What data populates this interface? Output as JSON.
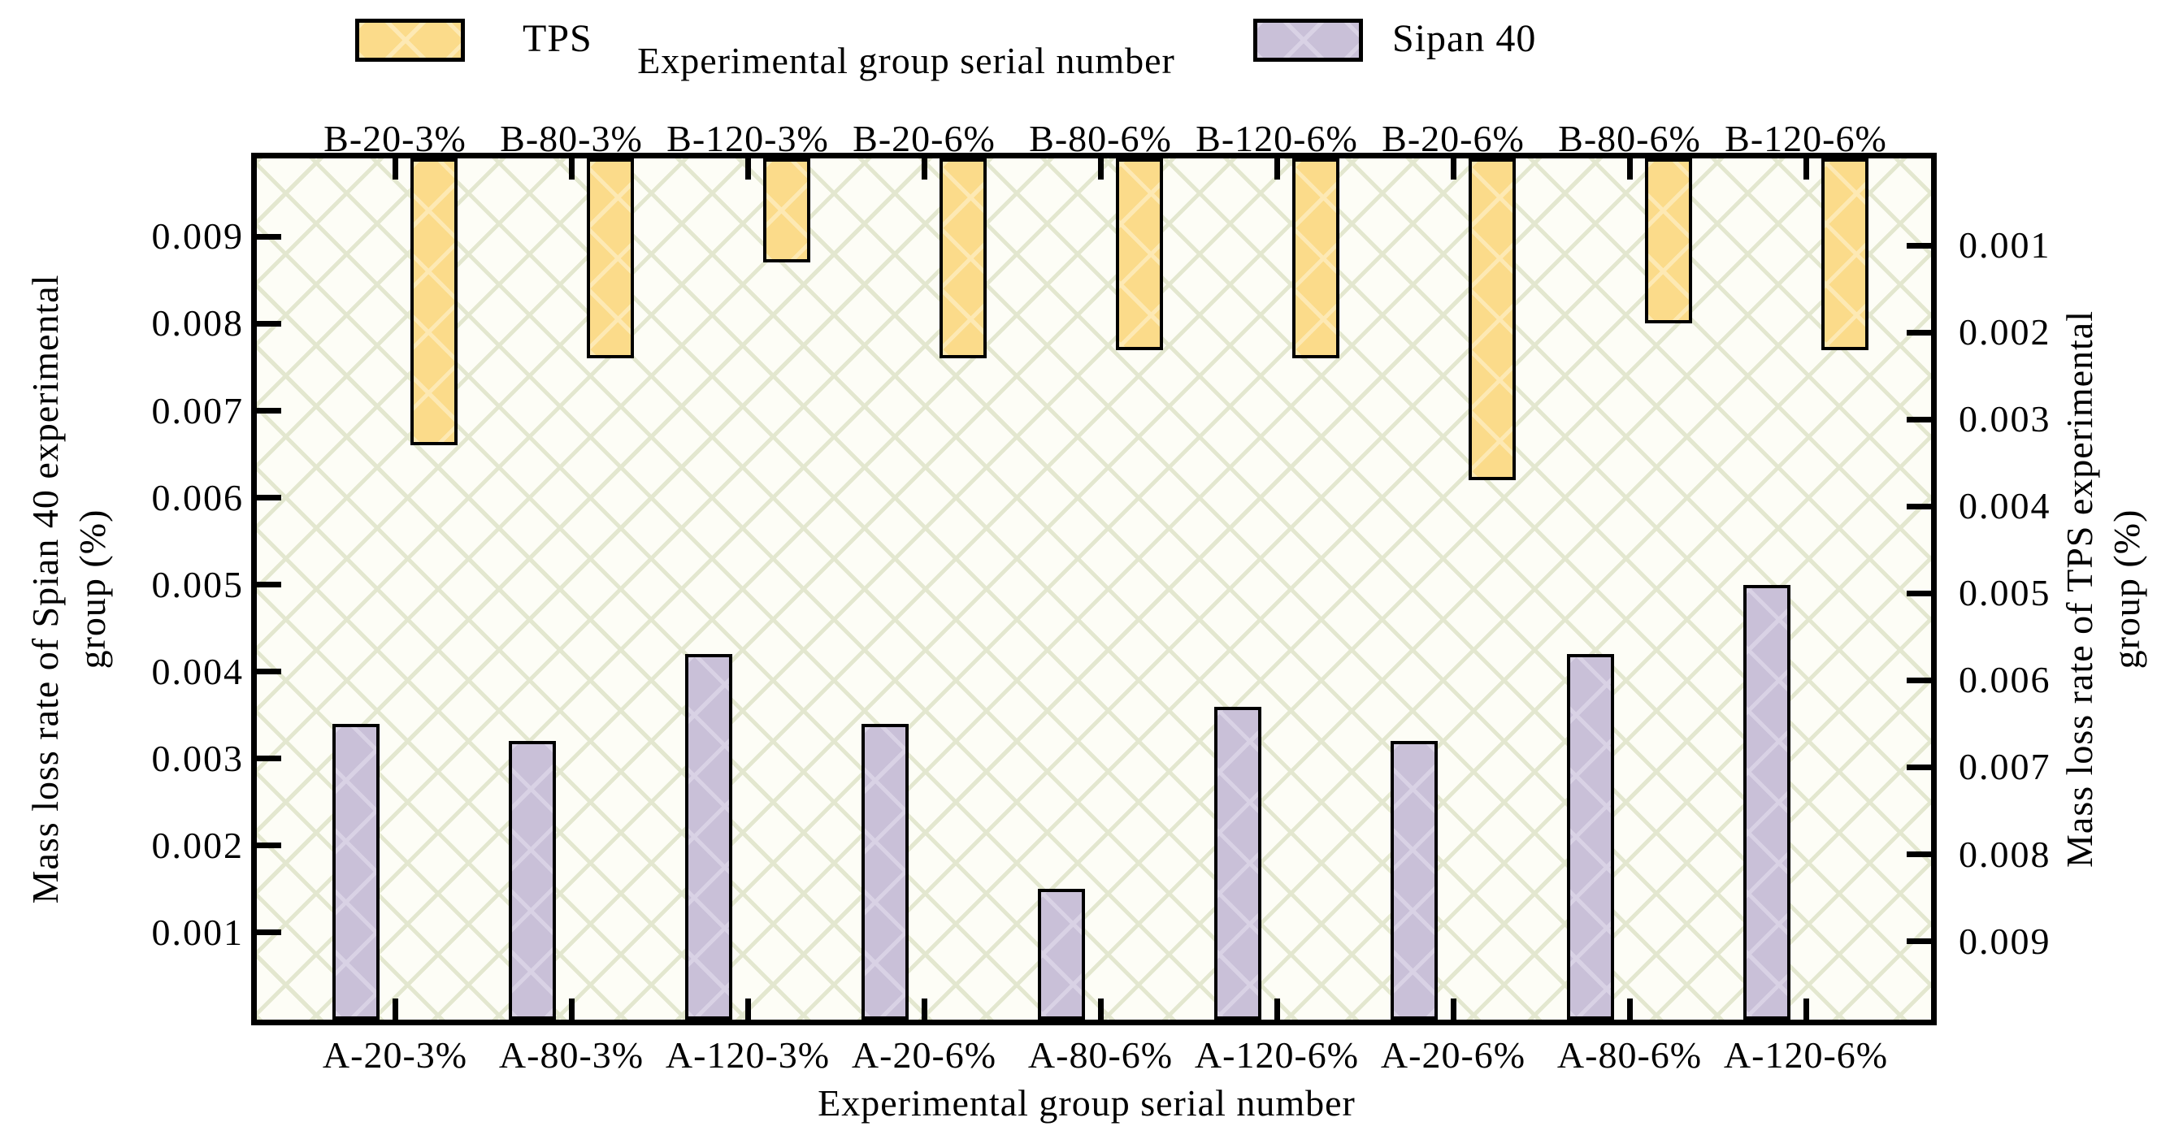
{
  "legend": [
    {
      "label": "TPS",
      "fill": "#FBDB8A",
      "hatch": "#FDE9B4"
    },
    {
      "label": "Sipan 40",
      "fill": "#C9C0D8",
      "hatch": "#D9D2E5"
    }
  ],
  "top_axis": {
    "title": "Experimental group serial number",
    "categories": [
      "B-20-3%",
      "B-80-3%",
      "B-120-3%",
      "B-20-6%",
      "B-80-6%",
      "B-120-6%",
      "B-20-6%",
      "B-80-6%",
      "B-120-6%"
    ]
  },
  "bottom_axis": {
    "title": "Experimental group serial number",
    "categories": [
      "A-20-3%",
      "A-80-3%",
      "A-120-3%",
      "A-20-6%",
      "A-80-6%",
      "A-120-6%",
      "A-20-6%",
      "A-80-6%",
      "A-120-6%"
    ]
  },
  "left_axis": {
    "title_lines": [
      "Mass loss rate of Spian 40 experimental",
      "group (%)"
    ],
    "tick_values": [
      0.001,
      0.002,
      0.003,
      0.004,
      0.005,
      0.006,
      0.007,
      0.008,
      0.009
    ]
  },
  "right_axis": {
    "title_lines": [
      "Mass loss rate of TPS experimental",
      "group (%)"
    ],
    "tick_values": [
      0.001,
      0.002,
      0.003,
      0.004,
      0.005,
      0.006,
      0.007,
      0.008,
      0.009
    ],
    "inverted": true
  },
  "chart_data": {
    "type": "bar",
    "dual_axis": true,
    "title": "",
    "categories_top": [
      "B-20-3%",
      "B-80-3%",
      "B-120-3%",
      "B-20-6%",
      "B-80-6%",
      "B-120-6%",
      "B-20-6%",
      "B-80-6%",
      "B-120-6%"
    ],
    "categories_bottom": [
      "A-20-3%",
      "A-80-3%",
      "A-120-3%",
      "A-20-6%",
      "A-80-6%",
      "A-120-6%",
      "A-20-6%",
      "A-80-6%",
      "A-120-6%"
    ],
    "series": [
      {
        "name": "TPS",
        "axis": "right",
        "orientation": "hanging-from-top",
        "values": [
          0.0033,
          0.0023,
          0.0012,
          0.0023,
          0.0022,
          0.0023,
          0.0037,
          0.0019,
          0.0022
        ]
      },
      {
        "name": "Sipan 40",
        "axis": "left",
        "orientation": "rising-from-bottom",
        "values": [
          0.0034,
          0.0032,
          0.0042,
          0.0034,
          0.0015,
          0.0036,
          0.0032,
          0.0042,
          0.005
        ]
      }
    ],
    "xlabel_top": "Experimental group serial number",
    "xlabel_bottom": "Experimental group serial number",
    "ylabel_left": "Mass loss rate of Spian 40 experimental group (%)",
    "ylabel_right": "Mass loss rate of TPS experimental group (%)",
    "left_ylim": [
      0,
      0.0099
    ],
    "right_ylim": [
      0,
      0.0099
    ],
    "grid": false,
    "legend_position": "top",
    "background_pattern": "diagonal-crosshatch",
    "colors": {
      "tps_fill": "#FBDB8A",
      "tps_hatch": "#FDE9B4",
      "sipan_fill": "#C9C0D8",
      "sipan_hatch": "#D9D2E5",
      "plot_bg": "#FDFDF6",
      "plot_hatch": "#E3E7CF",
      "axis": "#000000"
    }
  }
}
